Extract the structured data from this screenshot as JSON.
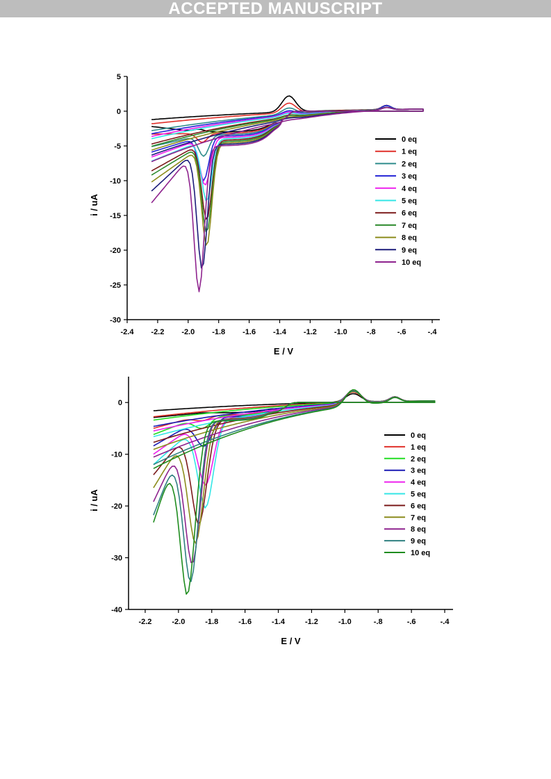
{
  "banner": {
    "text": "ACCEPTED MANUSCRIPT",
    "color": "#bdbdbd"
  },
  "chart_data": [
    {
      "type": "line",
      "title": "",
      "xlabel": "E / V",
      "ylabel": "i / uA",
      "xlim": [
        -2.4,
        -0.35
      ],
      "ylim": [
        -30,
        5
      ],
      "x_ticks": [
        -2.4,
        -2.2,
        -2.0,
        -1.8,
        -1.6,
        -1.4,
        -1.2,
        -1.0,
        -0.8,
        -0.6,
        -0.4
      ],
      "x_tick_labels": [
        "-2.4",
        "-2.2",
        "-2.0",
        "-1.8",
        "-1.6",
        "-1.4",
        "-1.2",
        "-1.0",
        "-.8",
        "-.6",
        "-.4"
      ],
      "y_ticks": [
        5,
        0,
        -5,
        -10,
        -15,
        -20,
        -25,
        -30
      ],
      "y_tick_labels": [
        "5",
        "0",
        "-5",
        "-10",
        "-15",
        "-20",
        "-25",
        "-30"
      ],
      "grid": false,
      "legend_position": "right",
      "peak_E": [
        -1.93,
        -1.91,
        -1.9,
        -1.9,
        -1.89,
        -1.88,
        -1.88,
        -1.88,
        -1.88,
        -1.91,
        -1.93
      ],
      "series": [
        {
          "name": "0 eq",
          "color": "#000000",
          "start_i": -2.2,
          "peak_i": -2.6,
          "anodic_i": 2.3,
          "plateau_i": -3.0
        },
        {
          "name": "1 eq",
          "color": "#e0302a",
          "start_i": -3.3,
          "peak_i": -4.5,
          "anodic_i": 1.4,
          "plateau_i": -3.2
        },
        {
          "name": "2 eq",
          "color": "#2f8c8c",
          "start_i": -5.1,
          "peak_i": -6.5,
          "anodic_i": 0.9,
          "plateau_i": -3.4
        },
        {
          "name": "3 eq",
          "color": "#2424d6",
          "start_i": -5.9,
          "peak_i": -10.0,
          "anodic_i": 0.6,
          "plateau_i": -3.6
        },
        {
          "name": "4 eq",
          "color": "#ee20ee",
          "start_i": -6.6,
          "peak_i": -10.7,
          "anodic_i": 0.5,
          "plateau_i": -3.8
        },
        {
          "name": "5 eq",
          "color": "#33e6e6",
          "start_i": -7.2,
          "peak_i": -13.0,
          "anodic_i": 0.4,
          "plateau_i": -4.0
        },
        {
          "name": "6 eq",
          "color": "#7b1a1a",
          "start_i": -8.6,
          "peak_i": -15.7,
          "anodic_i": 0.3,
          "plateau_i": -4.2
        },
        {
          "name": "7 eq",
          "color": "#2e8b2e",
          "start_i": -9.2,
          "peak_i": -17.5,
          "anodic_i": 0.3,
          "plateau_i": -4.4
        },
        {
          "name": "8 eq",
          "color": "#8c8c1c",
          "start_i": -10.2,
          "peak_i": -19.5,
          "anodic_i": 0.2,
          "plateau_i": -4.6
        },
        {
          "name": "9 eq",
          "color": "#1c1c7a",
          "start_i": -11.5,
          "peak_i": -22.8,
          "anodic_i": 0.2,
          "plateau_i": -4.8
        },
        {
          "name": "10 eq",
          "color": "#8e238e",
          "start_i": -13.2,
          "peak_i": -26.0,
          "anodic_i": 0.1,
          "plateau_i": -5.0
        }
      ]
    },
    {
      "type": "line",
      "title": "",
      "xlabel": "E / V",
      "ylabel": "i / uA",
      "xlim": [
        -2.3,
        -0.35
      ],
      "ylim": [
        -40,
        5
      ],
      "x_ticks": [
        -2.2,
        -2.0,
        -1.8,
        -1.6,
        -1.4,
        -1.2,
        -1.0,
        -0.8,
        -0.6,
        -0.4
      ],
      "x_tick_labels": [
        "-2.2",
        "-2.0",
        "-1.8",
        "-1.6",
        "-1.4",
        "-1.2",
        "-1.0",
        "-.8",
        "-.6",
        "-.4"
      ],
      "y_ticks": [
        0,
        -10,
        -20,
        -30,
        -40
      ],
      "y_tick_labels": [
        "0",
        "-10",
        "-20",
        "-30",
        "-40"
      ],
      "grid": false,
      "legend_position": "right",
      "peak_E": [
        -1.86,
        -1.86,
        -1.86,
        -1.85,
        -1.84,
        -1.84,
        -1.88,
        -1.9,
        -1.92,
        -1.93,
        -1.95
      ],
      "series": [
        {
          "name": "0 eq",
          "color": "#000000",
          "start_i": -2.9,
          "peak_i": -2.0,
          "anodic_i": 1.6,
          "plateau_i": -2.0
        },
        {
          "name": "1 eq",
          "color": "#e0302a",
          "start_i": -5.0,
          "peak_i": -3.5,
          "anodic_i": 2.0,
          "plateau_i": -2.4
        },
        {
          "name": "2 eq",
          "color": "#22dd22",
          "start_i": -6.2,
          "peak_i": -5.0,
          "anodic_i": 2.2,
          "plateau_i": -2.6
        },
        {
          "name": "3 eq",
          "color": "#1a1ab4",
          "start_i": -8.4,
          "peak_i": -8.5,
          "anodic_i": 2.4,
          "plateau_i": -2.8
        },
        {
          "name": "4 eq",
          "color": "#ee20ee",
          "start_i": -10.0,
          "peak_i": -16.0,
          "anodic_i": 2.5,
          "plateau_i": -3.0
        },
        {
          "name": "5 eq",
          "color": "#33e6e6",
          "start_i": -12.0,
          "peak_i": -20.4,
          "anodic_i": 2.6,
          "plateau_i": -3.1
        },
        {
          "name": "6 eq",
          "color": "#7b1a1a",
          "start_i": -14.0,
          "peak_i": -23.6,
          "anodic_i": 2.7,
          "plateau_i": -3.2
        },
        {
          "name": "7 eq",
          "color": "#8c8c1c",
          "start_i": -16.5,
          "peak_i": -27.3,
          "anodic_i": 2.8,
          "plateau_i": -3.3
        },
        {
          "name": "8 eq",
          "color": "#8e238e",
          "start_i": -19.2,
          "peak_i": -31.3,
          "anodic_i": 2.9,
          "plateau_i": -3.4
        },
        {
          "name": "9 eq",
          "color": "#2f8080",
          "start_i": -21.8,
          "peak_i": -34.8,
          "anodic_i": 3.0,
          "plateau_i": -3.5
        },
        {
          "name": "10 eq",
          "color": "#1e8c1e",
          "start_i": -23.2,
          "peak_i": -37.3,
          "anodic_i": 3.1,
          "plateau_i": -3.6
        }
      ]
    }
  ]
}
